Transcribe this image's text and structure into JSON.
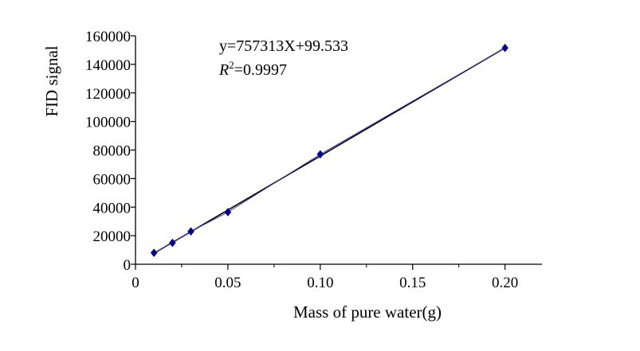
{
  "chart_data": {
    "type": "scatter",
    "title": "",
    "xlabel": "Mass of pure water(g)",
    "ylabel": "FID signal",
    "xlim": [
      0,
      0.22
    ],
    "ylim": [
      0,
      160000
    ],
    "x_ticks": [
      "0",
      "0.05",
      "0.10",
      "0.15",
      "0.20"
    ],
    "x_tick_values": [
      0,
      0.05,
      0.1,
      0.15,
      0.2
    ],
    "y_ticks": [
      "0",
      "20000",
      "40000",
      "60000",
      "80000",
      "100000",
      "120000",
      "140000",
      "160000"
    ],
    "y_tick_values": [
      0,
      20000,
      40000,
      60000,
      80000,
      100000,
      120000,
      140000,
      160000
    ],
    "grid": false,
    "legend": "none",
    "series": [
      {
        "marker": "diamond",
        "color": "#00008b",
        "connected": true,
        "points": [
          {
            "x": 0.01,
            "y": 8000
          },
          {
            "x": 0.02,
            "y": 15000
          },
          {
            "x": 0.03,
            "y": 23000
          },
          {
            "x": 0.05,
            "y": 36500
          },
          {
            "x": 0.1,
            "y": 77000
          },
          {
            "x": 0.2,
            "y": 151500
          }
        ]
      }
    ],
    "fit_line": {
      "slope": 757313,
      "intercept": 99.533,
      "x_range": [
        0.01,
        0.2
      ],
      "color": "#000000"
    },
    "annotation": {
      "equation": "y=757313X+99.533",
      "r2_symbol": "R",
      "r2_exponent": "2",
      "r2_value": "=0.9997"
    }
  }
}
